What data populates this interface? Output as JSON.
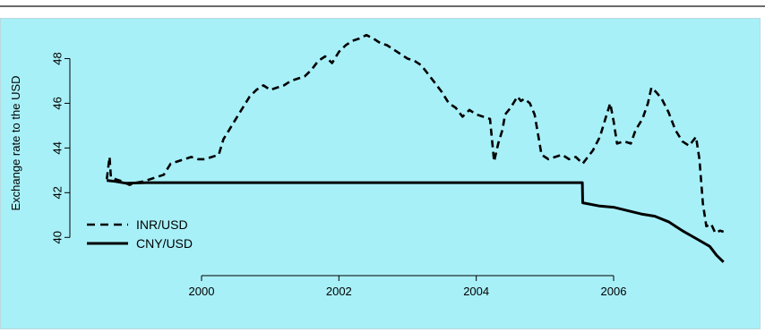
{
  "chart_data": {
    "type": "line",
    "title": "",
    "xlabel": "",
    "ylabel": "Exchange rate to the USD",
    "xlim": [
      1998.2,
      2008.1
    ],
    "ylim": [
      38.65,
      49.5
    ],
    "x_ticks": [
      2000,
      2002,
      2004,
      2006
    ],
    "y_ticks": [
      40,
      42,
      44,
      46,
      48
    ],
    "grid": false,
    "legend_position": "bottom-left",
    "series": [
      {
        "name": "INR/USD",
        "style": "dashed",
        "color": "#000000",
        "points": [
          [
            1998.62,
            42.6
          ],
          [
            1998.66,
            43.6
          ],
          [
            1998.68,
            42.7
          ],
          [
            1998.75,
            42.6
          ],
          [
            1998.85,
            42.5
          ],
          [
            1998.95,
            42.35
          ],
          [
            1999.05,
            42.45
          ],
          [
            1999.15,
            42.5
          ],
          [
            1999.25,
            42.6
          ],
          [
            1999.35,
            42.7
          ],
          [
            1999.45,
            42.8
          ],
          [
            1999.55,
            43.3
          ],
          [
            1999.65,
            43.4
          ],
          [
            1999.75,
            43.5
          ],
          [
            1999.85,
            43.6
          ],
          [
            1999.95,
            43.5
          ],
          [
            2000.05,
            43.5
          ],
          [
            2000.15,
            43.6
          ],
          [
            2000.25,
            43.7
          ],
          [
            2000.32,
            44.4
          ],
          [
            2000.4,
            44.8
          ],
          [
            2000.5,
            45.3
          ],
          [
            2000.6,
            45.8
          ],
          [
            2000.7,
            46.3
          ],
          [
            2000.8,
            46.6
          ],
          [
            2000.9,
            46.8
          ],
          [
            2001.0,
            46.6
          ],
          [
            2001.1,
            46.7
          ],
          [
            2001.2,
            46.8
          ],
          [
            2001.3,
            47.0
          ],
          [
            2001.4,
            47.1
          ],
          [
            2001.5,
            47.2
          ],
          [
            2001.6,
            47.5
          ],
          [
            2001.7,
            47.9
          ],
          [
            2001.8,
            48.1
          ],
          [
            2001.9,
            47.8
          ],
          [
            2002.0,
            48.3
          ],
          [
            2002.1,
            48.6
          ],
          [
            2002.2,
            48.8
          ],
          [
            2002.3,
            48.9
          ],
          [
            2002.4,
            49.05
          ],
          [
            2002.5,
            48.9
          ],
          [
            2002.6,
            48.7
          ],
          [
            2002.7,
            48.6
          ],
          [
            2002.8,
            48.4
          ],
          [
            2002.9,
            48.2
          ],
          [
            2003.0,
            48.0
          ],
          [
            2003.1,
            47.9
          ],
          [
            2003.2,
            47.7
          ],
          [
            2003.3,
            47.3
          ],
          [
            2003.4,
            46.9
          ],
          [
            2003.5,
            46.5
          ],
          [
            2003.6,
            46.0
          ],
          [
            2003.7,
            45.8
          ],
          [
            2003.8,
            45.4
          ],
          [
            2003.9,
            45.7
          ],
          [
            2004.0,
            45.5
          ],
          [
            2004.1,
            45.4
          ],
          [
            2004.2,
            45.3
          ],
          [
            2004.26,
            43.4
          ],
          [
            2004.32,
            44.2
          ],
          [
            2004.38,
            44.8
          ],
          [
            2004.42,
            45.5
          ],
          [
            2004.5,
            45.8
          ],
          [
            2004.6,
            46.3
          ],
          [
            2004.65,
            46.1
          ],
          [
            2004.7,
            46.2
          ],
          [
            2004.78,
            46.0
          ],
          [
            2004.85,
            45.5
          ],
          [
            2004.9,
            44.6
          ],
          [
            2004.95,
            43.7
          ],
          [
            2005.05,
            43.5
          ],
          [
            2005.15,
            43.6
          ],
          [
            2005.25,
            43.7
          ],
          [
            2005.35,
            43.5
          ],
          [
            2005.45,
            43.6
          ],
          [
            2005.55,
            43.3
          ],
          [
            2005.6,
            43.5
          ],
          [
            2005.7,
            43.9
          ],
          [
            2005.8,
            44.5
          ],
          [
            2005.9,
            45.5
          ],
          [
            2005.95,
            46.0
          ],
          [
            2006.0,
            45.2
          ],
          [
            2006.05,
            44.2
          ],
          [
            2006.15,
            44.3
          ],
          [
            2006.25,
            44.2
          ],
          [
            2006.32,
            44.8
          ],
          [
            2006.42,
            45.3
          ],
          [
            2006.5,
            46.0
          ],
          [
            2006.55,
            46.7
          ],
          [
            2006.62,
            46.5
          ],
          [
            2006.7,
            46.2
          ],
          [
            2006.8,
            45.6
          ],
          [
            2006.9,
            44.8
          ],
          [
            2007.0,
            44.3
          ],
          [
            2007.1,
            44.1
          ],
          [
            2007.2,
            44.5
          ],
          [
            2007.25,
            43.5
          ],
          [
            2007.3,
            41.5
          ],
          [
            2007.35,
            40.5
          ],
          [
            2007.42,
            40.6
          ],
          [
            2007.48,
            40.2
          ],
          [
            2007.55,
            40.3
          ],
          [
            2007.6,
            40.25
          ]
        ]
      },
      {
        "name": "CNY/USD",
        "style": "solid",
        "color": "#000000",
        "points": [
          [
            1998.62,
            42.55
          ],
          [
            1998.75,
            42.5
          ],
          [
            1998.9,
            42.42
          ],
          [
            1999.2,
            42.45
          ],
          [
            2000.0,
            42.45
          ],
          [
            2001.0,
            42.45
          ],
          [
            2002.0,
            42.45
          ],
          [
            2003.0,
            42.45
          ],
          [
            2004.0,
            42.45
          ],
          [
            2005.0,
            42.45
          ],
          [
            2005.545,
            42.45
          ],
          [
            2005.55,
            41.55
          ],
          [
            2005.8,
            41.4
          ],
          [
            2006.0,
            41.35
          ],
          [
            2006.2,
            41.2
          ],
          [
            2006.4,
            41.05
          ],
          [
            2006.6,
            40.95
          ],
          [
            2006.8,
            40.7
          ],
          [
            2007.0,
            40.3
          ],
          [
            2007.2,
            39.95
          ],
          [
            2007.4,
            39.6
          ],
          [
            2007.5,
            39.2
          ],
          [
            2007.6,
            38.9
          ]
        ]
      }
    ]
  }
}
